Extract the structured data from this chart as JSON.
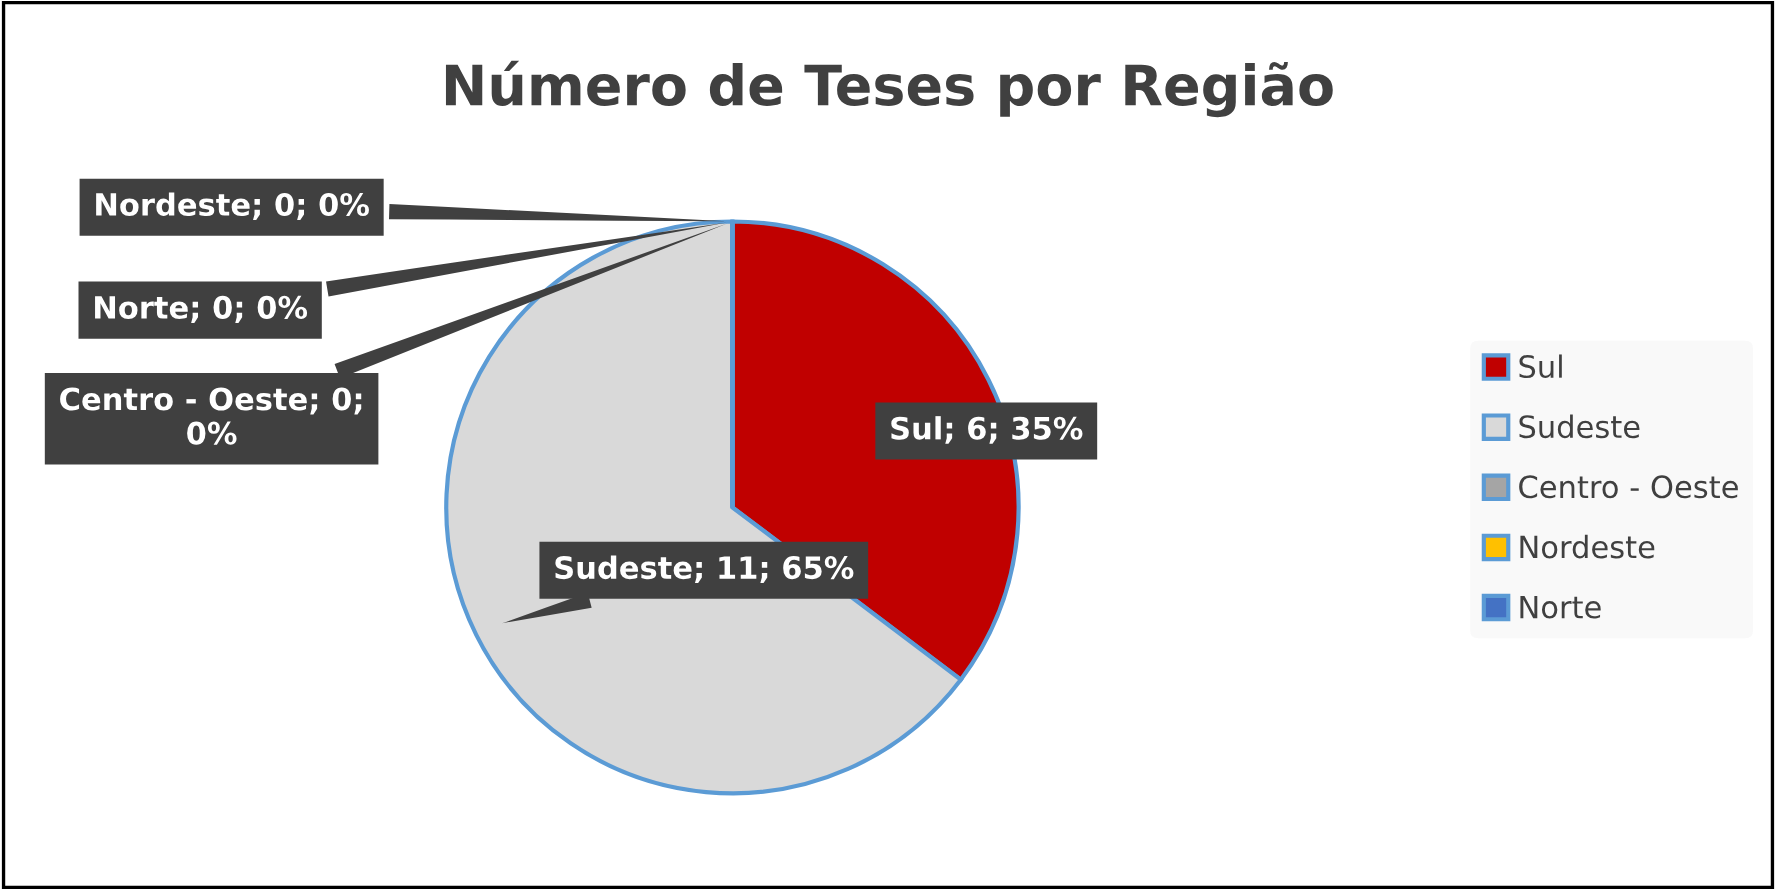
{
  "chart_data": {
    "type": "pie",
    "title": "Número de Teses por Região",
    "categories": [
      "Sul",
      "Sudeste",
      "Centro - Oeste",
      "Nordeste",
      "Norte"
    ],
    "values": [
      6,
      11,
      0,
      0,
      0
    ],
    "colors": [
      "#c00000",
      "#d9d9d9",
      "#a5a5a5",
      "#ffc000",
      "#4472c4"
    ],
    "value_labels": [
      "Sul; 6; 35%",
      "Sudeste; 11; 65%",
      "Centro - Oeste; 0;\n0%",
      "Nordeste; 0; 0%",
      "Norte; 0; 0%"
    ],
    "legend": "right"
  }
}
